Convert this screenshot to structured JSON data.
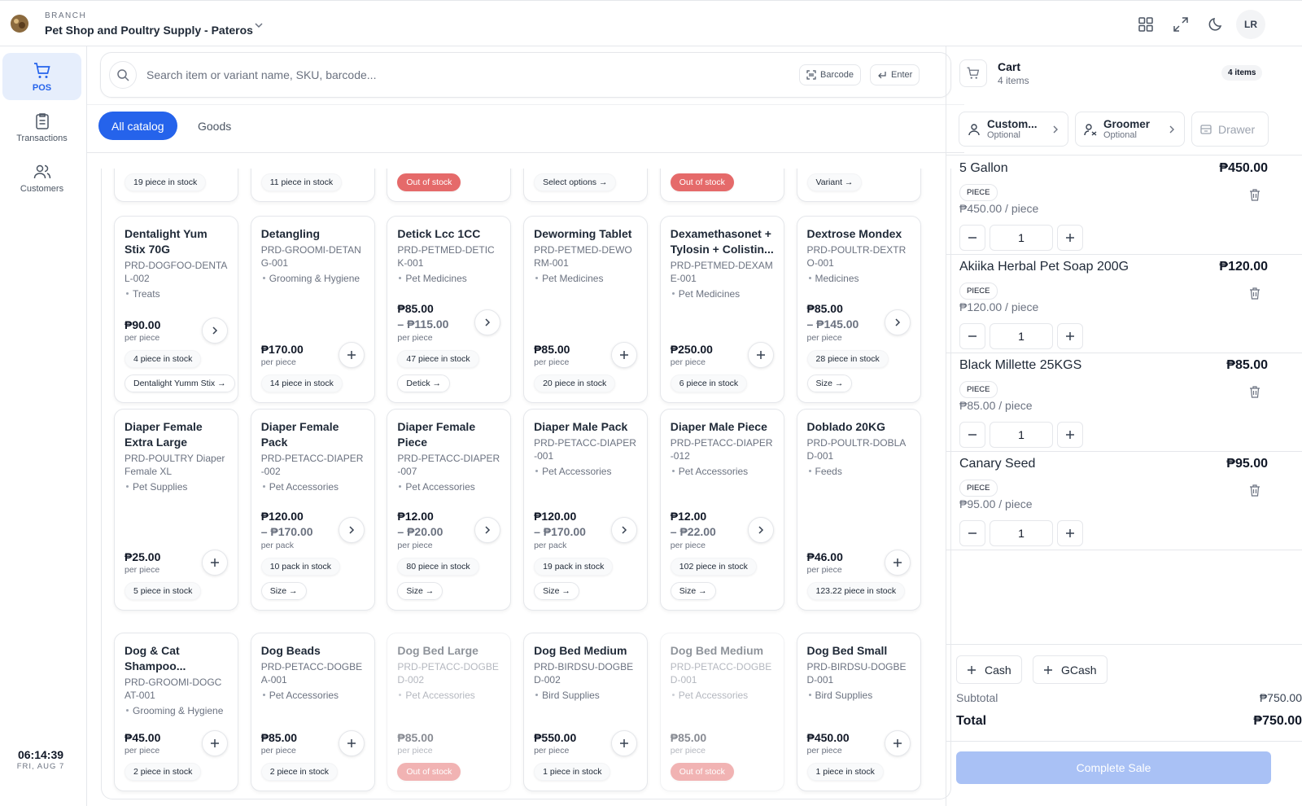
{
  "header": {
    "branch_label": "BRANCH",
    "branch_name": "Pet Shop and Poultry Supply - Pateros",
    "avatar": "LR"
  },
  "sidebar": {
    "nav": [
      "POS",
      "Transactions",
      "Customers"
    ],
    "time": "06:14:39",
    "date": "FRI, AUG 7"
  },
  "search": {
    "placeholder": "Search item or variant name, SKU, barcode...",
    "barcode": "Barcode",
    "enter": "Enter"
  },
  "tabs": [
    "All catalog",
    "Goods"
  ],
  "catalog": {
    "partial_row": [
      {
        "text": "19 piece in stock",
        "out_of_stock": false
      },
      {
        "text": "11 piece in stock",
        "out_of_stock": false
      },
      {
        "text": "Out of stock",
        "out_of_stock": true
      },
      {
        "text": "Select options →",
        "out_of_stock": false
      },
      {
        "text": "Out of stock",
        "out_of_stock": true
      },
      {
        "text": "Variant →",
        "out_of_stock": false
      }
    ],
    "products": [
      {
        "name": "Dentalight Yum Stix 70G",
        "sku": "PRD-DOGFOO-DENTAL-002",
        "category": "Treats",
        "price": "₱90.00",
        "unit": "per piece",
        "stock": "4 piece in stock",
        "action": "Dentalight Yumm Stix →",
        "button": "arrow",
        "available": true
      },
      {
        "name": "Detangling",
        "sku": "PRD-GROOMI-DETANG-001",
        "category": "Grooming & Hygiene",
        "price": "₱170.00",
        "unit": "per piece",
        "stock": "14 piece in stock",
        "button": "plus",
        "available": true
      },
      {
        "name": "Detick Lcc 1CC",
        "sku": "PRD-PETMED-DETICK-001",
        "category": "Pet Medicines",
        "price": "₱85.00",
        "price_max": "– ₱115.00",
        "unit": "per piece",
        "stock": "47 piece in stock",
        "action": "Detick →",
        "button": "arrow",
        "available": true
      },
      {
        "name": "Deworming Tablet",
        "sku": "PRD-PETMED-DEWORM-001",
        "category": "Pet Medicines",
        "price": "₱85.00",
        "unit": "per piece",
        "stock": "20 piece in stock",
        "button": "plus",
        "available": true
      },
      {
        "name": "Dexamethasonet + Tylosin + Colistin...",
        "sku": "PRD-PETMED-DEXAME-001",
        "category": "Pet Medicines",
        "price": "₱250.00",
        "unit": "per piece",
        "stock": "6 piece in stock",
        "button": "plus",
        "available": true
      },
      {
        "name": "Dextrose Mondex",
        "sku": "PRD-POULTR-DEXTRO-001",
        "category": "Medicines",
        "price": "₱85.00",
        "price_max": "– ₱145.00",
        "unit": "per piece",
        "stock": "28 piece in stock",
        "action": "Size →",
        "button": "arrow",
        "available": true
      },
      {
        "name": "Diaper Female Extra Large",
        "sku": "PRD-POULTRY Diaper Female XL",
        "category": "Pet Supplies",
        "price": "₱25.00",
        "unit": "per piece",
        "stock": "5 piece in stock",
        "button": "plus",
        "available": true
      },
      {
        "name": "Diaper Female Pack",
        "sku": "PRD-PETACC-DIAPER-002",
        "category": "Pet Accessories",
        "price": "₱120.00",
        "price_max": "– ₱170.00",
        "unit": "per pack",
        "stock": "10 pack in stock",
        "action": "Size →",
        "button": "arrow",
        "available": true
      },
      {
        "name": "Diaper Female Piece",
        "sku": "PRD-PETACC-DIAPER-007",
        "category": "Pet Accessories",
        "price": "₱12.00",
        "price_max": "– ₱20.00",
        "unit": "per piece",
        "stock": "80 piece in stock",
        "action": "Size →",
        "button": "arrow",
        "available": true
      },
      {
        "name": "Diaper Male Pack",
        "sku": "PRD-PETACC-DIAPER-001",
        "category": "Pet Accessories",
        "price": "₱120.00",
        "price_max": "– ₱170.00",
        "unit": "per pack",
        "stock": "19 pack in stock",
        "action": "Size →",
        "button": "arrow",
        "available": true
      },
      {
        "name": "Diaper Male Piece",
        "sku": "PRD-PETACC-DIAPER-012",
        "category": "Pet Accessories",
        "price": "₱12.00",
        "price_max": "– ₱22.00",
        "unit": "per piece",
        "stock": "102 piece in stock",
        "action": "Size →",
        "button": "arrow",
        "available": true
      },
      {
        "name": "Doblado 20KG",
        "sku": "PRD-POULTR-DOBLAD-001",
        "category": "Feeds",
        "price": "₱46.00",
        "unit": "per piece",
        "stock": "123.22 piece in stock",
        "button": "plus",
        "available": true
      },
      {
        "name": "Dog & Cat Shampoo...",
        "sku": "PRD-GROOMI-DOGCAT-001",
        "category": "Grooming & Hygiene",
        "price": "₱45.00",
        "unit": "per piece",
        "stock": "2 piece in stock",
        "button": "plus",
        "available": true
      },
      {
        "name": "Dog Beads",
        "sku": "PRD-PETACC-DOGBEA-001",
        "category": "Pet Accessories",
        "price": "₱85.00",
        "unit": "per piece",
        "stock": "2 piece in stock",
        "button": "plus",
        "available": true
      },
      {
        "name": "Dog Bed Large",
        "sku": "PRD-PETACC-DOGBED-002",
        "category": "Pet Accessories",
        "price": "₱85.00",
        "unit": "per piece",
        "stock": "Out of stock",
        "button": "none",
        "available": false
      },
      {
        "name": "Dog Bed Medium",
        "sku": "PRD-BIRDSU-DOGBED-002",
        "category": "Bird Supplies",
        "price": "₱550.00",
        "unit": "per piece",
        "stock": "1 piece in stock",
        "button": "plus",
        "available": true
      },
      {
        "name": "Dog Bed Medium",
        "sku": "PRD-PETACC-DOGBED-001",
        "category": "Pet Accessories",
        "price": "₱85.00",
        "unit": "per piece",
        "stock": "Out of stock",
        "button": "none",
        "available": false
      },
      {
        "name": "Dog Bed Small",
        "sku": "PRD-BIRDSU-DOGBED-001",
        "category": "Bird Supplies",
        "price": "₱450.00",
        "unit": "per piece",
        "stock": "1 piece in stock",
        "button": "plus",
        "available": true
      }
    ]
  },
  "cart": {
    "title": "Cart",
    "subtitle": "4 items",
    "badge": "4 items",
    "selectors": [
      {
        "label": "Custom...",
        "hint": "Optional"
      },
      {
        "label": "Groomer",
        "hint": "Optional"
      }
    ],
    "drawer": "Drawer",
    "items": [
      {
        "name": "5 Gallon",
        "price": "₱450.00",
        "unit": "PIECE",
        "unit_price": "₱450.00 / piece",
        "qty": "1"
      },
      {
        "name": "Akiika Herbal Pet Soap 200G",
        "price": "₱120.00",
        "unit": "PIECE",
        "unit_price": "₱120.00 / piece",
        "qty": "1"
      },
      {
        "name": "Black Millette 25KGS",
        "price": "₱85.00",
        "unit": "PIECE",
        "unit_price": "₱85.00 / piece",
        "qty": "1"
      },
      {
        "name": "Canary Seed",
        "price": "₱95.00",
        "unit": "PIECE",
        "unit_price": "₱95.00 / piece",
        "qty": "1"
      }
    ],
    "payments": [
      "Cash",
      "GCash"
    ],
    "subtotal_label": "Subtotal",
    "subtotal": "₱750.00",
    "total_label": "Total",
    "total": "₱750.00",
    "complete": "Complete Sale"
  }
}
